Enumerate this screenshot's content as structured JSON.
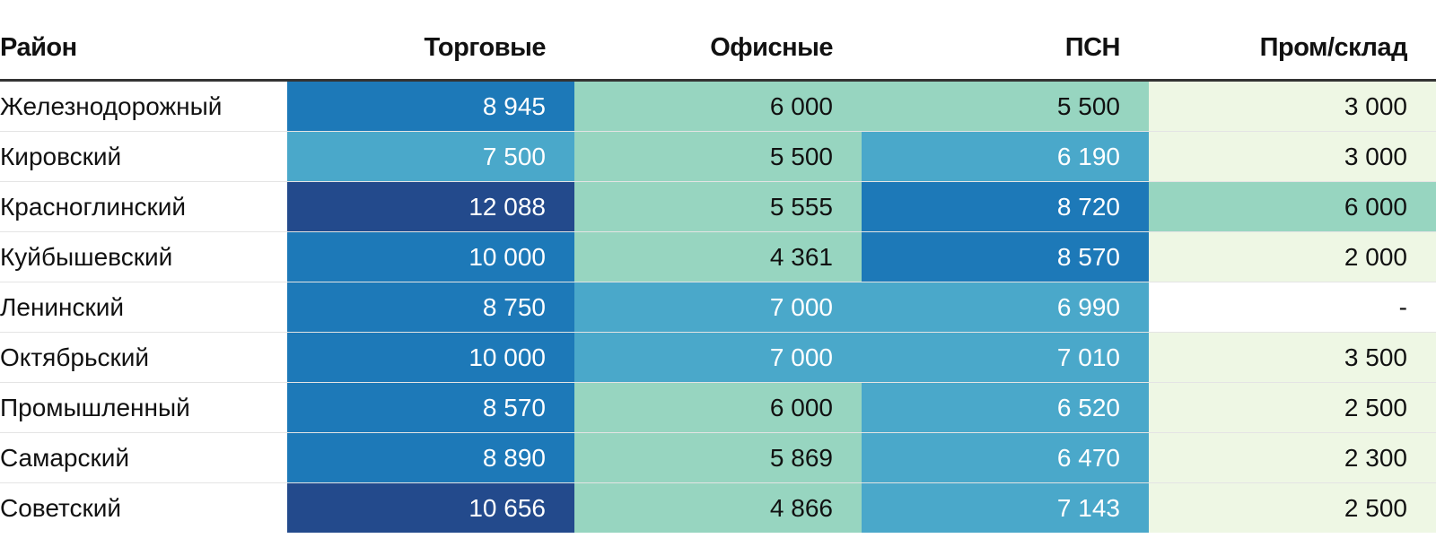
{
  "chart_data": {
    "type": "heatmap",
    "row_header": "Район",
    "columns": [
      "Торговые",
      "Офисные",
      "ПСН",
      "Пром/склад"
    ],
    "rows": [
      {
        "name": "Железнодорожный",
        "values": [
          8945,
          6000,
          5500,
          3000
        ],
        "labels": [
          "8 945",
          "6 000",
          "5 500",
          "3 000"
        ]
      },
      {
        "name": "Кировский",
        "values": [
          7500,
          5500,
          6190,
          3000
        ],
        "labels": [
          "7 500",
          "5 500",
          "6 190",
          "3 000"
        ]
      },
      {
        "name": "Красноглинский",
        "values": [
          12088,
          5555,
          8720,
          6000
        ],
        "labels": [
          "12 088",
          "5 555",
          "8 720",
          "6 000"
        ]
      },
      {
        "name": "Куйбышевский",
        "values": [
          10000,
          4361,
          8570,
          2000
        ],
        "labels": [
          "10 000",
          "4 361",
          "8 570",
          "2 000"
        ]
      },
      {
        "name": "Ленинский",
        "values": [
          8750,
          7000,
          6990,
          null
        ],
        "labels": [
          "8 750",
          "7 000",
          "6 990",
          "-"
        ]
      },
      {
        "name": "Октябрьский",
        "values": [
          10000,
          7000,
          7010,
          3500
        ],
        "labels": [
          "10 000",
          "7 000",
          "7 010",
          "3 500"
        ]
      },
      {
        "name": "Промышленный",
        "values": [
          8570,
          6000,
          6520,
          2500
        ],
        "labels": [
          "8 570",
          "6 000",
          "6 520",
          "2 500"
        ]
      },
      {
        "name": "Самарский",
        "values": [
          8890,
          5869,
          6470,
          2300
        ],
        "labels": [
          "8 890",
          "5 869",
          "6 470",
          "2 300"
        ]
      },
      {
        "name": "Советский",
        "values": [
          10656,
          4866,
          7143,
          2500
        ],
        "labels": [
          "10 656",
          "4 866",
          "7 143",
          "2 500"
        ]
      }
    ],
    "color_scale": {
      "thresholds": [
        0,
        4000,
        6190,
        8000,
        10100
      ],
      "colors": [
        "#eef7e4",
        "#97d5c0",
        "#4aa8ca",
        "#1d79b8",
        "#234a8c"
      ],
      "missing_color": "#ffffff",
      "light_text": "#ffffff",
      "dark_text": "#111111"
    }
  }
}
